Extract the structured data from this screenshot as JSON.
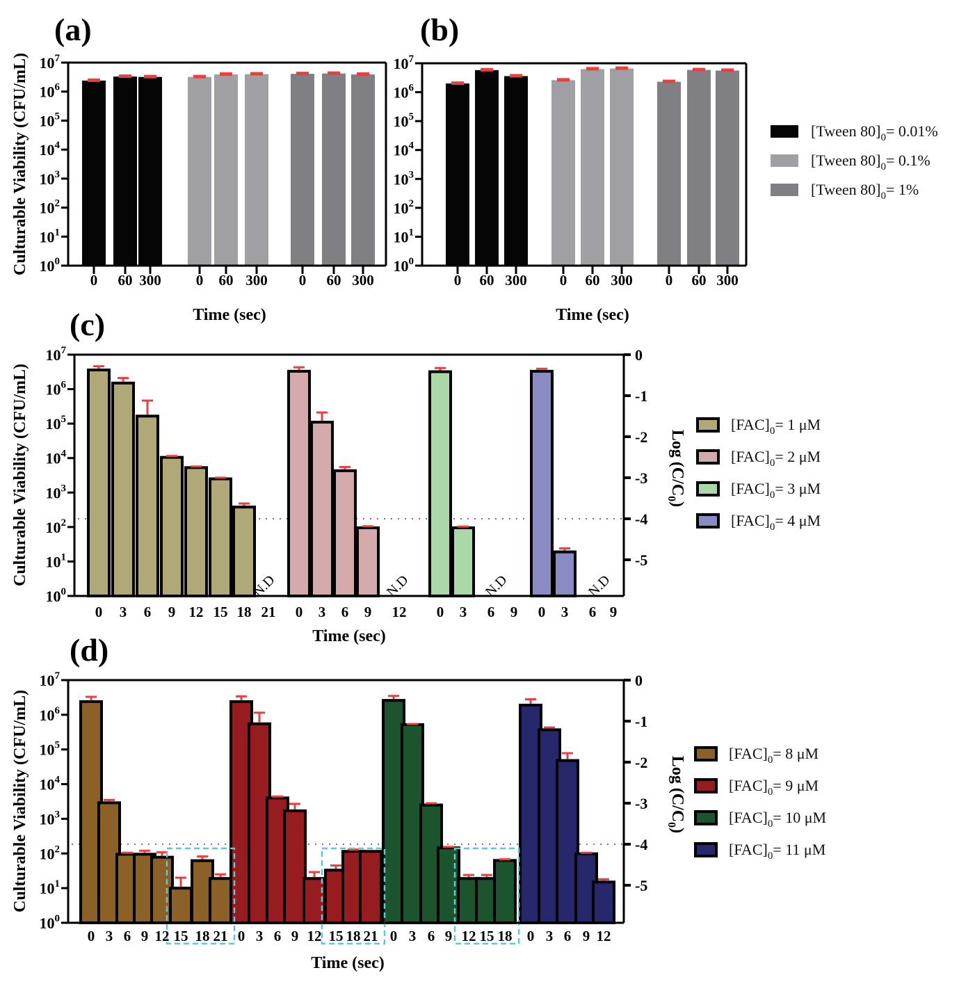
{
  "chart_data": [
    {
      "panel": "(a)",
      "type": "bar",
      "ylabel": "Culturable Viability  (CFU/mL)",
      "xlabel": "Time (sec)",
      "yscale": "log",
      "ylim": [
        1,
        10000000
      ],
      "yticks": [
        "10^0",
        "10^1",
        "10^2",
        "10^3",
        "10^4",
        "10^5",
        "10^6",
        "10^7"
      ],
      "grid": false,
      "groups": [
        {
          "name": "[Tween 80]0= 0.01%",
          "color": "#050505",
          "categories": [
            "0",
            "60",
            "300"
          ],
          "values": [
            2400000,
            3300000,
            3200000
          ],
          "errors": [
            150000,
            200000,
            200000
          ]
        },
        {
          "name": "[Tween 80]0= 0.1%",
          "color": "#a0a0a4",
          "categories": [
            "0",
            "60",
            "300"
          ],
          "values": [
            3200000,
            3900000,
            4000000
          ],
          "errors": [
            200000,
            250000,
            250000
          ]
        },
        {
          "name": "[Tween 80]0= 1%",
          "color": "#808084",
          "categories": [
            "0",
            "60",
            "300"
          ],
          "values": [
            4100000,
            4200000,
            3900000
          ],
          "errors": [
            250000,
            250000,
            250000
          ]
        }
      ]
    },
    {
      "panel": "(b)",
      "type": "bar",
      "ylabel": "",
      "xlabel": "Time (sec)",
      "yscale": "log",
      "ylim": [
        1,
        10000000
      ],
      "yticks": [
        "10^0",
        "10^1",
        "10^2",
        "10^3",
        "10^4",
        "10^5",
        "10^6",
        "10^7"
      ],
      "grid": false,
      "legend_position": "right",
      "groups": [
        {
          "name": "[Tween 80]0= 0.01%",
          "color": "#050505",
          "categories": [
            "0",
            "60",
            "300"
          ],
          "values": [
            2000000,
            5800000,
            3600000
          ],
          "errors": [
            150000,
            350000,
            250000
          ]
        },
        {
          "name": "[Tween 80]0= 0.1%",
          "color": "#a0a0a4",
          "categories": [
            "0",
            "60",
            "300"
          ],
          "values": [
            2600000,
            6300000,
            6600000
          ],
          "errors": [
            150000,
            350000,
            350000
          ]
        },
        {
          "name": "[Tween 80]0= 1%",
          "color": "#808084",
          "categories": [
            "0",
            "60",
            "300"
          ],
          "values": [
            2300000,
            5900000,
            5600000
          ],
          "errors": [
            150000,
            350000,
            350000
          ]
        }
      ],
      "legend": [
        {
          "label": "[Tween 80]",
          "sub": "0",
          "suffix": "= 0.01%",
          "color": "#050505"
        },
        {
          "label": "[Tween 80]",
          "sub": "0",
          "suffix": "=  0.1%",
          "color": "#a0a0a4"
        },
        {
          "label": "[Tween 80]",
          "sub": "0",
          "suffix": "= 1%",
          "color": "#808084"
        }
      ]
    },
    {
      "panel": "(c)",
      "type": "bar",
      "ylabel": "Culturable Viability  (CFU/mL)",
      "y2label": "Log (C/C0)",
      "xlabel": "Time (sec)",
      "yscale": "log",
      "ylim": [
        1,
        10000000
      ],
      "y2ticks": [
        "0",
        "-1",
        "-2",
        "-3",
        "-4",
        "-5"
      ],
      "detection_limit_log_c_c0": -4,
      "nd_label": "N.D",
      "legend_position": "right",
      "groups": [
        {
          "name": "[FAC]0= 1 μM",
          "color": "#b0a877",
          "categories": [
            "0",
            "3",
            "6",
            "9",
            "12",
            "15",
            "18",
            "21"
          ],
          "values": [
            3600000,
            1500000,
            165000,
            10500,
            5300,
            2500,
            380,
            null
          ],
          "errors": [
            1000000,
            600000,
            300000,
            1000,
            400,
            200,
            100,
            null
          ]
        },
        {
          "name": "[FAC]0= 2 μM",
          "color": "#d5aaac",
          "categories": [
            "0",
            "3",
            "6",
            "9",
            "12"
          ],
          "values": [
            3300000,
            110000,
            4300,
            95,
            null
          ],
          "errors": [
            1000000,
            100000,
            1200,
            10,
            null
          ]
        },
        {
          "name": "[FAC]0= 3 μM",
          "color": "#abd8a8",
          "categories": [
            "0",
            "3",
            "6",
            "9"
          ],
          "values": [
            3200000,
            95,
            null,
            null
          ],
          "errors": [
            900000,
            8,
            null,
            null
          ]
        },
        {
          "name": "[FAC]0= 4 μM",
          "color": "#888cc3",
          "categories": [
            "0",
            "3",
            "6",
            "9"
          ],
          "values": [
            3300000,
            19,
            null,
            null
          ],
          "errors": [
            600000,
            5,
            null,
            null
          ]
        }
      ],
      "legend": [
        {
          "label": "[FAC]",
          "sub": "0",
          "suffix": "= 1 μM",
          "color": "#b0a877"
        },
        {
          "label": "[FAC]",
          "sub": "0",
          "suffix": "= 2 μM",
          "color": "#d5aaac"
        },
        {
          "label": "[FAC]",
          "sub": "0",
          "suffix": "= 3 μM",
          "color": "#abd8a8"
        },
        {
          "label": "[FAC]",
          "sub": "0",
          "suffix": "= 4 μM",
          "color": "#888cc3"
        }
      ]
    },
    {
      "panel": "(d)",
      "type": "bar",
      "ylabel": "Culturable Viability  (CFU/mL)",
      "y2label": "Log (C/C0)",
      "xlabel": "Time (sec)",
      "yscale": "log",
      "ylim": [
        1,
        10000000
      ],
      "y2ticks": [
        "0",
        "-1",
        "-2",
        "-3",
        "-4",
        "-5"
      ],
      "detection_limit_log_c_c0": -4,
      "legend_position": "right",
      "highlight_boxes": [
        {
          "group": 0,
          "categories": [
            "15",
            "18",
            "21"
          ]
        },
        {
          "group": 1,
          "categories": [
            "15",
            "18",
            "21"
          ]
        },
        {
          "group": 2,
          "categories": [
            "12",
            "15",
            "18"
          ]
        }
      ],
      "groups": [
        {
          "name": "[FAC]0= 8 μM",
          "color": "#8b6128",
          "categories": [
            "0",
            "3",
            "6",
            "9",
            "12",
            "15",
            "18",
            "21"
          ],
          "values": [
            2400000,
            2900,
            95,
            95,
            78,
            10,
            62,
            19
          ],
          "errors": [
            900000,
            600,
            10,
            25,
            30,
            10,
            20,
            6
          ]
        },
        {
          "name": "[FAC]0= 9 μM",
          "color": "#971c20",
          "categories": [
            "0",
            "3",
            "6",
            "9",
            "12",
            "15",
            "18",
            "21"
          ],
          "values": [
            2400000,
            550000,
            4000,
            1700,
            19,
            33,
            115,
            115
          ],
          "errors": [
            1000000,
            600000,
            400,
            1000,
            10,
            12,
            15,
            0
          ]
        },
        {
          "name": "[FAC]0= 10 μM",
          "color": "#1c552d",
          "categories": [
            "0",
            "3",
            "6",
            "9",
            "12",
            "15",
            "18"
          ],
          "values": [
            2600000,
            520000,
            2500,
            145,
            19,
            19,
            63
          ],
          "errors": [
            900000,
            20000,
            300,
            10,
            5,
            5,
            5
          ]
        },
        {
          "name": "[FAC]0= 11 μM",
          "color": "#26286b",
          "categories": [
            "0",
            "3",
            "6",
            "9",
            "12"
          ],
          "values": [
            1900000,
            370000,
            48000,
            98,
            15
          ],
          "errors": [
            900000,
            60000,
            30000,
            7,
            3
          ]
        }
      ],
      "legend": [
        {
          "label": "[FAC]",
          "sub": "0",
          "suffix": "= 8 μM",
          "color": "#8b6128"
        },
        {
          "label": "[FAC]",
          "sub": "0",
          "suffix": "= 9 μM",
          "color": "#971c20"
        },
        {
          "label": "[FAC]",
          "sub": "0",
          "suffix": "= 10 μM",
          "color": "#1c552d"
        },
        {
          "label": "[FAC]",
          "sub": "0",
          "suffix": "= 11 μM",
          "color": "#26286b"
        }
      ]
    }
  ],
  "colors": {
    "error_bar": "#e8403f",
    "detection_line": "#9b59b6",
    "highlight_box": "#5bc8da",
    "axis": "#000000"
  }
}
